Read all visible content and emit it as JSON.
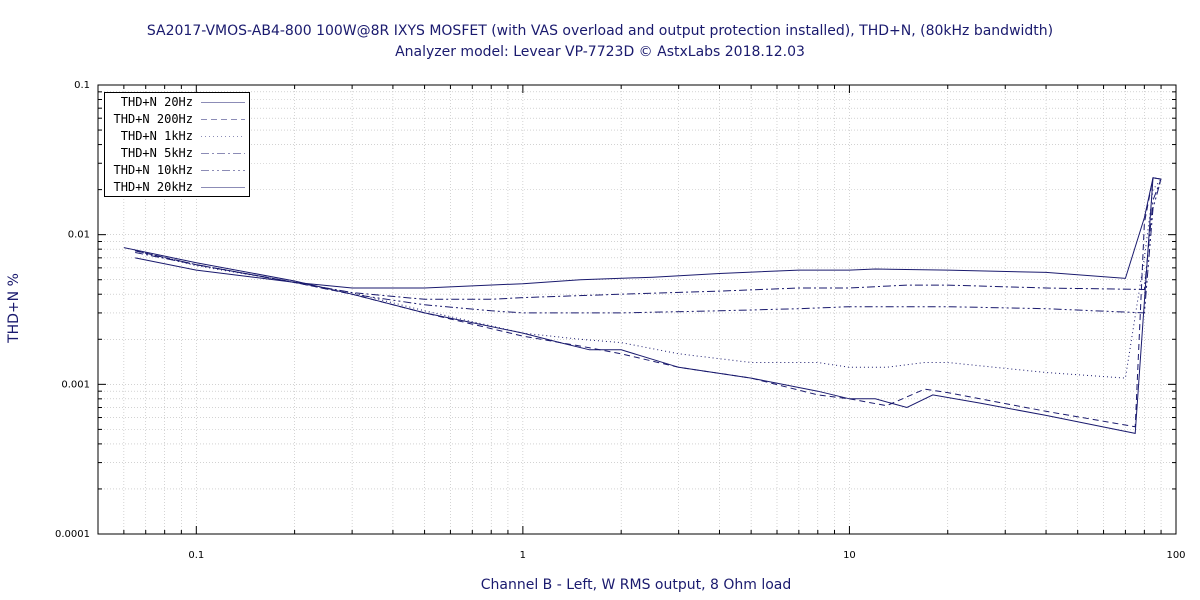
{
  "chart_data": {
    "type": "line",
    "title": "SA2017-VMOS-AB4-800 100W@8R IXYS MOSFET (with VAS overload and output protection installed), THD+N, (80kHz bandwidth)",
    "subtitle": "Analyzer model: Levear VP-7723D © AstxLabs 2018.12.03",
    "xlabel": "Channel B - Left, W RMS output, 8 Ohm load",
    "ylabel": "THD+N %",
    "xscale": "log",
    "yscale": "log",
    "xlim": [
      0.05,
      100
    ],
    "ylim": [
      0.0001,
      0.1
    ],
    "x_ticks": [
      "0.1",
      "1",
      "10",
      "100"
    ],
    "y_ticks": [
      "0.1",
      "0.01",
      "0.001",
      "0.0001"
    ],
    "grid": true,
    "legend_position": "top-left",
    "color": "#1a1a6e",
    "series": [
      {
        "name": "THD+N 20Hz",
        "dash": "solid",
        "points": [
          [
            0.065,
            0.007
          ],
          [
            0.1,
            0.0058
          ],
          [
            0.15,
            0.0052
          ],
          [
            0.2,
            0.0048
          ],
          [
            0.3,
            0.0044
          ],
          [
            0.5,
            0.0044
          ],
          [
            1,
            0.0047
          ],
          [
            1.5,
            0.005
          ],
          [
            2.5,
            0.0052
          ],
          [
            4,
            0.0055
          ],
          [
            7,
            0.0058
          ],
          [
            10,
            0.0058
          ],
          [
            12,
            0.0059
          ],
          [
            20,
            0.0058
          ],
          [
            40,
            0.0056
          ],
          [
            70,
            0.0051
          ],
          [
            80,
            0.013
          ],
          [
            85,
            0.024
          ],
          [
            90,
            0.0235
          ]
        ]
      },
      {
        "name": "THD+N 200Hz",
        "dash": "dashed",
        "points": [
          [
            0.065,
            0.0078
          ],
          [
            0.1,
            0.0063
          ],
          [
            0.2,
            0.0048
          ],
          [
            0.3,
            0.004
          ],
          [
            0.5,
            0.003
          ],
          [
            1,
            0.0021
          ],
          [
            1.5,
            0.0018
          ],
          [
            2,
            0.0016
          ],
          [
            3,
            0.0013
          ],
          [
            5,
            0.0011
          ],
          [
            8,
            0.00085
          ],
          [
            10,
            0.0008
          ],
          [
            13,
            0.00072
          ],
          [
            17,
            0.00093
          ],
          [
            20,
            0.00088
          ],
          [
            40,
            0.00066
          ],
          [
            65,
            0.00055
          ],
          [
            75,
            0.00052
          ],
          [
            80,
            0.012
          ],
          [
            85,
            0.024
          ],
          [
            90,
            0.0235
          ]
        ]
      },
      {
        "name": "THD+N 1kHz",
        "dash": "dotted",
        "points": [
          [
            0.065,
            0.0078
          ],
          [
            0.1,
            0.0062
          ],
          [
            0.2,
            0.0048
          ],
          [
            0.3,
            0.0041
          ],
          [
            0.5,
            0.0031
          ],
          [
            1,
            0.0022
          ],
          [
            1.5,
            0.002
          ],
          [
            2,
            0.0019
          ],
          [
            3,
            0.0016
          ],
          [
            5,
            0.0014
          ],
          [
            8,
            0.0014
          ],
          [
            10,
            0.0013
          ],
          [
            13,
            0.0013
          ],
          [
            17,
            0.0014
          ],
          [
            20,
            0.0014
          ],
          [
            40,
            0.0012
          ],
          [
            70,
            0.0011
          ],
          [
            80,
            0.007
          ],
          [
            85,
            0.02
          ],
          [
            90,
            0.0235
          ]
        ]
      },
      {
        "name": "THD+N 5kHz",
        "dash": "dashdot",
        "points": [
          [
            0.065,
            0.0076
          ],
          [
            0.1,
            0.0063
          ],
          [
            0.2,
            0.0048
          ],
          [
            0.3,
            0.0041
          ],
          [
            0.5,
            0.0037
          ],
          [
            0.8,
            0.0037
          ],
          [
            1,
            0.0038
          ],
          [
            2,
            0.004
          ],
          [
            4,
            0.0042
          ],
          [
            7,
            0.0044
          ],
          [
            10,
            0.0044
          ],
          [
            15,
            0.0046
          ],
          [
            20,
            0.0046
          ],
          [
            40,
            0.0044
          ],
          [
            80,
            0.0043
          ],
          [
            85,
            0.017
          ],
          [
            90,
            0.0235
          ]
        ]
      },
      {
        "name": "THD+N 10kHz",
        "dash": "dashdotdot",
        "points": [
          [
            0.065,
            0.0078
          ],
          [
            0.1,
            0.0063
          ],
          [
            0.2,
            0.0048
          ],
          [
            0.3,
            0.004
          ],
          [
            0.5,
            0.0034
          ],
          [
            0.8,
            0.0031
          ],
          [
            1,
            0.003
          ],
          [
            2,
            0.003
          ],
          [
            4,
            0.0031
          ],
          [
            7,
            0.0032
          ],
          [
            10,
            0.0033
          ],
          [
            15,
            0.0033
          ],
          [
            20,
            0.0033
          ],
          [
            40,
            0.0032
          ],
          [
            80,
            0.003
          ],
          [
            85,
            0.015
          ],
          [
            90,
            0.0235
          ]
        ]
      },
      {
        "name": "THD+N 20kHz",
        "dash": "solid",
        "points": [
          [
            0.06,
            0.0082
          ],
          [
            0.1,
            0.0065
          ],
          [
            0.2,
            0.0049
          ],
          [
            0.3,
            0.004
          ],
          [
            0.5,
            0.003
          ],
          [
            1,
            0.0022
          ],
          [
            1.3,
            0.0019
          ],
          [
            1.6,
            0.0017
          ],
          [
            2,
            0.0017
          ],
          [
            3,
            0.0013
          ],
          [
            5,
            0.0011
          ],
          [
            8,
            0.0009
          ],
          [
            10,
            0.0008
          ],
          [
            12,
            0.0008
          ],
          [
            15,
            0.0007
          ],
          [
            18,
            0.00085
          ],
          [
            25,
            0.00075
          ],
          [
            40,
            0.00062
          ],
          [
            75,
            0.00047
          ],
          [
            85,
            0.024
          ],
          [
            90,
            0.0235
          ]
        ]
      }
    ]
  }
}
